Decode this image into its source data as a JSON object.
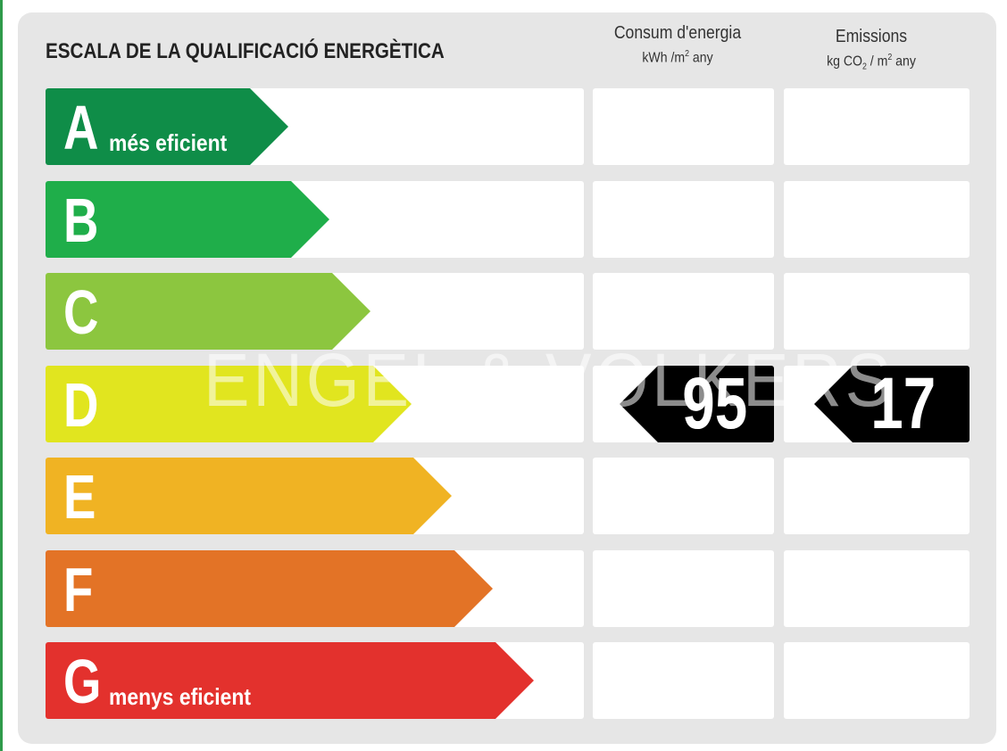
{
  "title": "ESCALA DE LA QUALIFICACIÓ ENERGÈTICA",
  "columns": {
    "consumption": {
      "label": "Consum d'energia",
      "unit_pre": "kWh /m",
      "unit_sup": "2",
      "unit_post": " any"
    },
    "emissions": {
      "label": "Emissions",
      "unit_pre": "kg CO",
      "unit_sub": "2",
      "unit_mid": " / m",
      "unit_sup": "2",
      "unit_post": " any"
    }
  },
  "ratings": [
    {
      "letter": "A",
      "description": "més eficient",
      "color": "#0f8d48"
    },
    {
      "letter": "B",
      "description": "",
      "color": "#1fae4a"
    },
    {
      "letter": "C",
      "description": "",
      "color": "#8cc63f"
    },
    {
      "letter": "D",
      "description": "",
      "color": "#e1e51f"
    },
    {
      "letter": "E",
      "description": "",
      "color": "#f0b323"
    },
    {
      "letter": "F",
      "description": "",
      "color": "#e37326"
    },
    {
      "letter": "G",
      "description": "menys eficient",
      "color": "#e3312d"
    }
  ],
  "result": {
    "rating": "D",
    "consumption_value": "95",
    "emissions_value": "17"
  },
  "watermark": "ENGEL & VÖLKERS"
}
